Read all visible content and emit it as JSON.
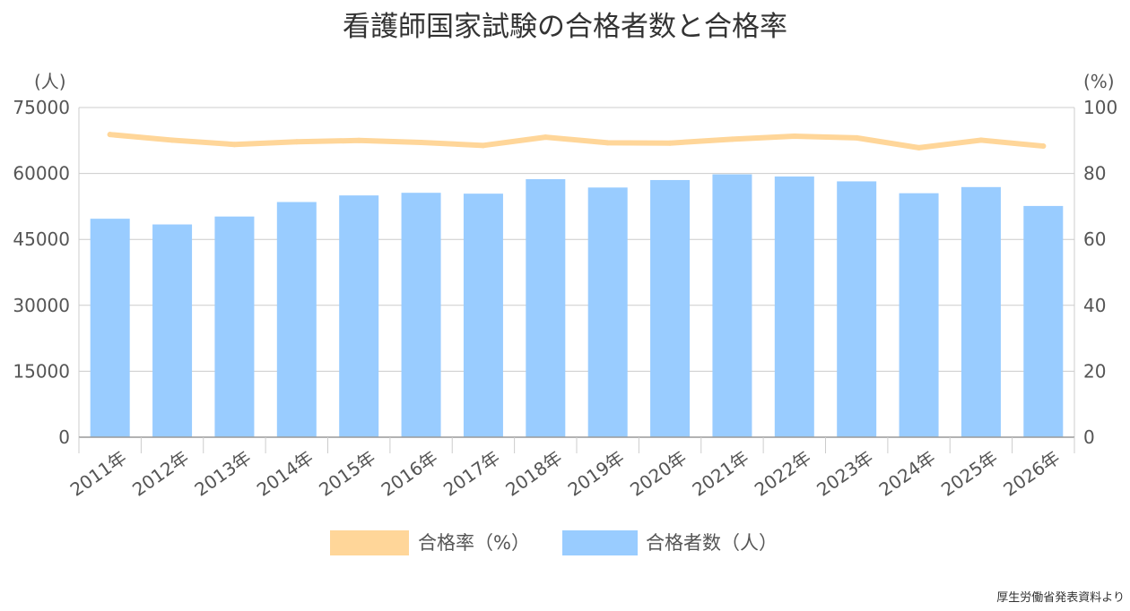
{
  "chart_data": {
    "type": "bar",
    "title": "看護師国家試験の合格者数と合格率",
    "categories": [
      "2011年",
      "2012年",
      "2013年",
      "2014年",
      "2015年",
      "2016年",
      "2017年",
      "2018年",
      "2019年",
      "2020年",
      "2021年",
      "2022年",
      "2023年",
      "2024年",
      "2025年",
      "2026年"
    ],
    "series": [
      {
        "name": "合格者数（人）",
        "type": "bar",
        "axis": "left",
        "color": "#99ccff",
        "values": [
          49700,
          48400,
          50200,
          53500,
          55000,
          55600,
          55400,
          58700,
          56800,
          58500,
          59800,
          59300,
          58200,
          55500,
          56900,
          52600
        ]
      },
      {
        "name": "合格率（%）",
        "type": "line",
        "axis": "right",
        "color": "#ffd699",
        "values": [
          91.8,
          90.1,
          88.8,
          89.6,
          90.0,
          89.4,
          88.5,
          91.0,
          89.3,
          89.2,
          90.4,
          91.3,
          90.8,
          87.8,
          90.1,
          88.3
        ]
      }
    ],
    "y_left": {
      "label": "(人)",
      "min": 0,
      "max": 75000,
      "ticks": [
        "0",
        "15000",
        "30000",
        "45000",
        "60000",
        "75000"
      ]
    },
    "y_right": {
      "label": "(%)",
      "min": 0,
      "max": 100,
      "ticks": [
        "0",
        "20",
        "40",
        "60",
        "80",
        "100"
      ]
    },
    "grid": true,
    "legend_position": "bottom"
  },
  "source_note": "厚生労働省発表資料より"
}
